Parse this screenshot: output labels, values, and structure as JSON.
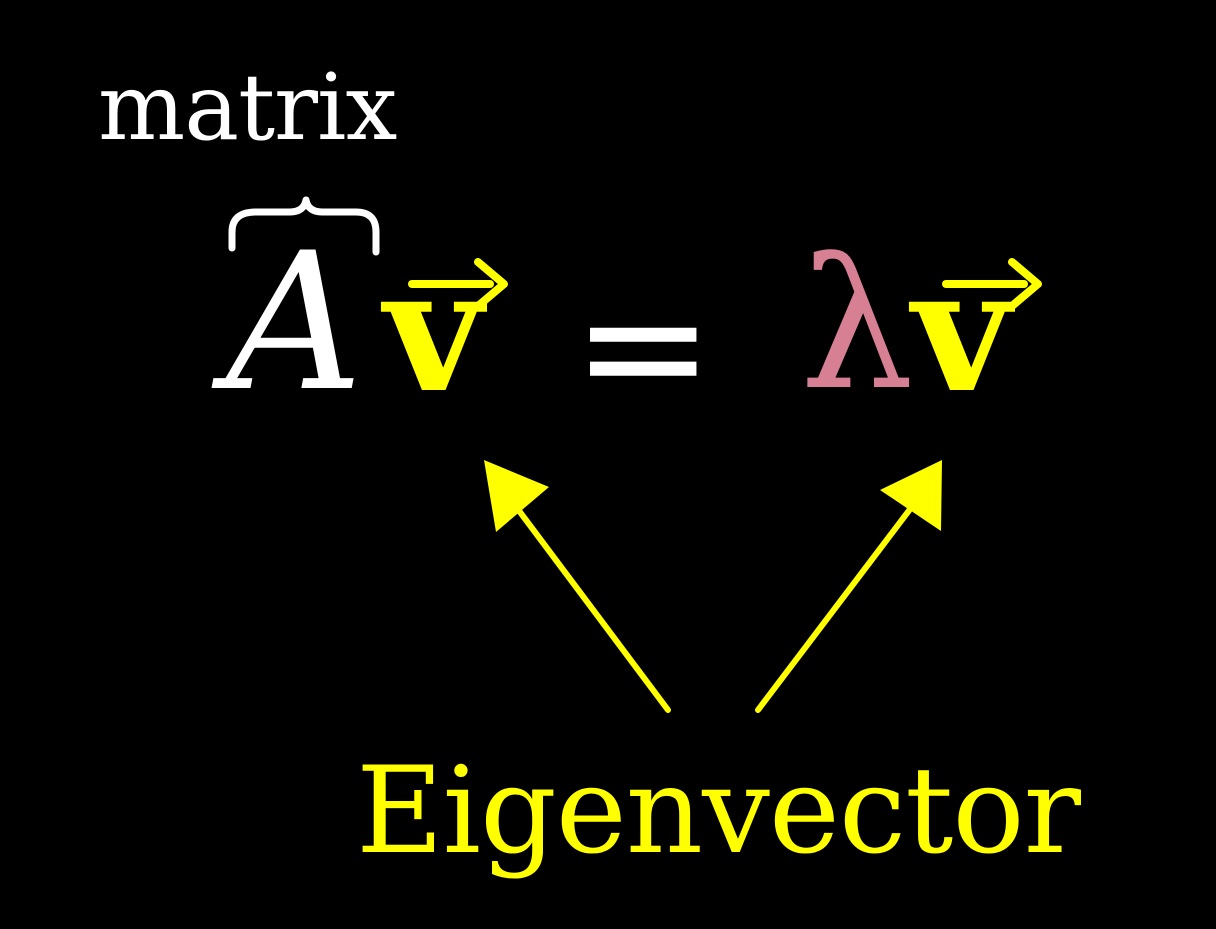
{
  "colors": {
    "background": "#000000",
    "white": "#ffffff",
    "yellow": "#ffff00",
    "pink": "#d77f93"
  },
  "labels": {
    "matrix": "matrix",
    "eigenvector": "Eigenvector"
  },
  "equation": {
    "matrix_symbol": "A",
    "vector_symbol": "v",
    "equals": "=",
    "eigenvalue_symbol": "λ"
  },
  "icons": [
    "overbrace-icon",
    "vector-arrow-icon",
    "pointer-arrow-icon"
  ]
}
